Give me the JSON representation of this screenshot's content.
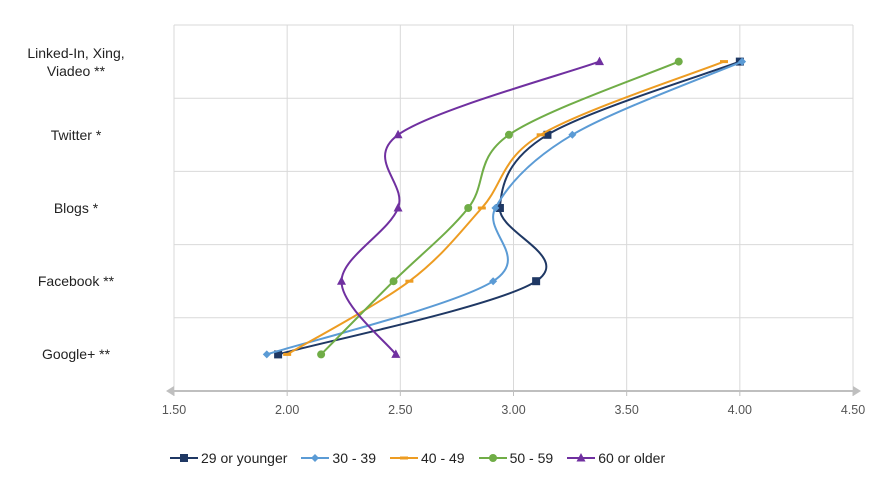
{
  "chart_data": {
    "type": "line",
    "categories": [
      "Google+ **",
      "Facebook **",
      "Blogs *",
      "Twitter *",
      "Linked-In, Xing, Viadeo **"
    ],
    "category_lines": [
      [
        "Google+ **"
      ],
      [
        "Facebook **"
      ],
      [
        "Blogs *"
      ],
      [
        "Twitter *"
      ],
      [
        "Linked-In, Xing,",
        "Viadeo **"
      ]
    ],
    "xlim": [
      1.5,
      4.5
    ],
    "xticks": [
      "1.50",
      "2.00",
      "2.50",
      "3.00",
      "3.50",
      "4.00",
      "4.50"
    ],
    "series": [
      {
        "name": "29 or younger",
        "values": [
          1.96,
          3.1,
          2.94,
          3.15,
          4.0
        ],
        "color": "#1F3864",
        "marker": "square"
      },
      {
        "name": "30 - 39",
        "values": [
          1.91,
          2.91,
          2.92,
          3.26,
          4.01
        ],
        "color": "#5B9BD5",
        "marker": "diamond"
      },
      {
        "name": "40 - 49",
        "values": [
          2.0,
          2.54,
          2.86,
          3.12,
          3.93
        ],
        "color": "#ED9C22",
        "marker": "dash"
      },
      {
        "name": "50 - 59",
        "values": [
          2.15,
          2.47,
          2.8,
          2.98,
          3.73
        ],
        "color": "#70AD47",
        "marker": "circle"
      },
      {
        "name": "60 or older",
        "values": [
          2.48,
          2.24,
          2.49,
          2.49,
          3.38
        ],
        "color": "#7030A0",
        "marker": "triangle"
      }
    ],
    "grid": true,
    "legend_position": "bottom"
  }
}
